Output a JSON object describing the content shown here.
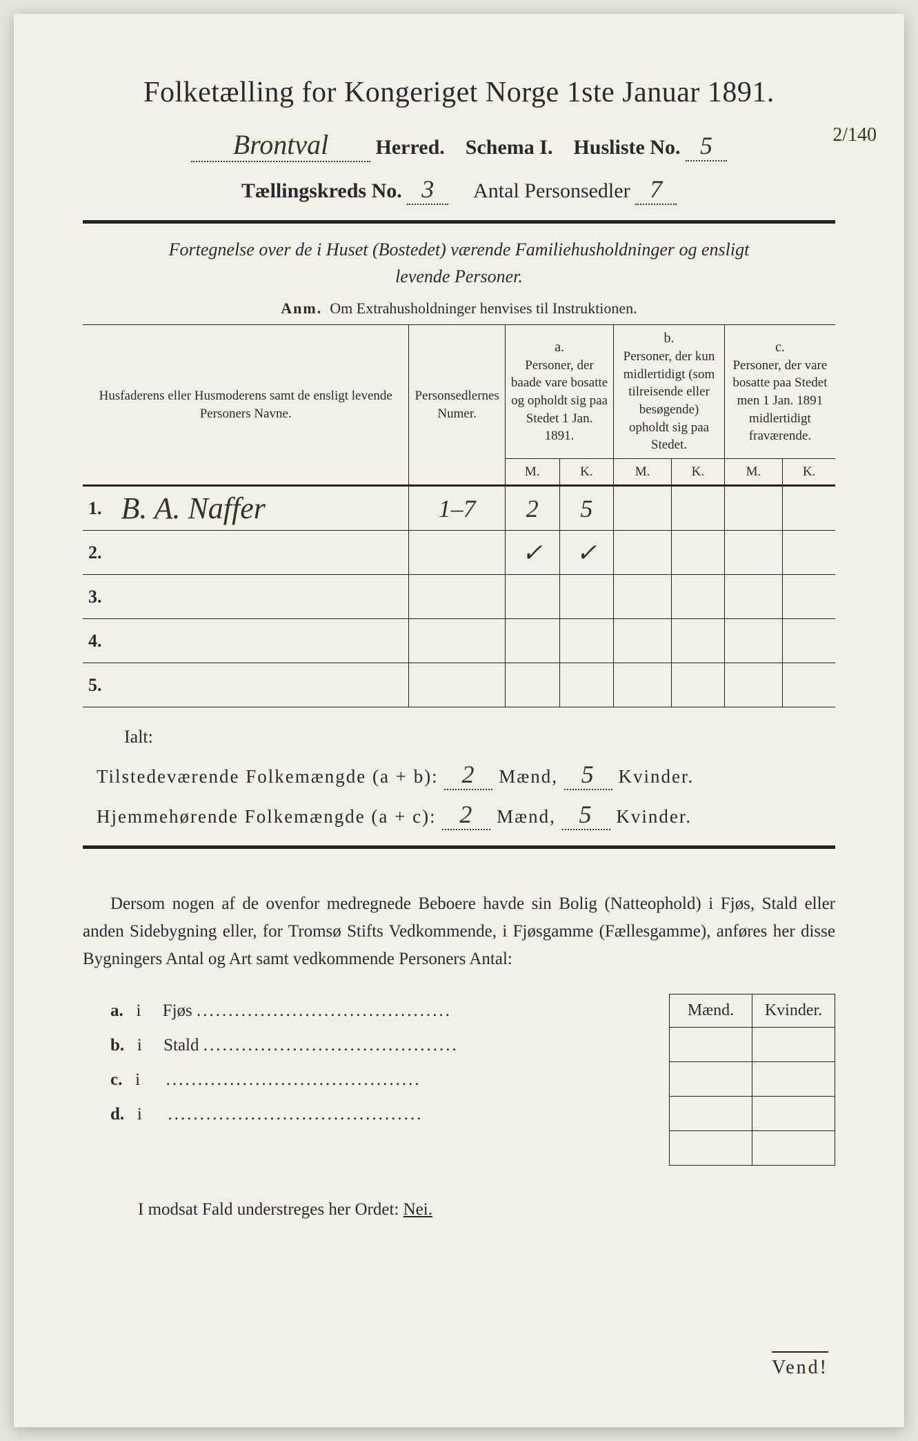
{
  "title": "Folketælling for Kongeriget Norge 1ste Januar 1891.",
  "header": {
    "herred_value": "Brontval",
    "herred_label": "Herred.",
    "schema_label": "Schema I.",
    "husliste_label": "Husliste No.",
    "husliste_value": "5",
    "kreds_label": "Tællingskreds No.",
    "kreds_value": "3",
    "antal_label": "Antal Personsedler",
    "antal_value": "7",
    "margin_note": "2/140"
  },
  "subtitle_line1": "Fortegnelse over de i Huset (Bostedet) værende Familiehusholdninger og ensligt",
  "subtitle_line2": "levende Personer.",
  "anm_label": "Anm.",
  "anm_text": "Om Extrahusholdninger henvises til Instruktionen.",
  "table": {
    "col_name": "Husfaderens eller Husmoderens samt de ensligt levende Personers Navne.",
    "col_numer": "Personsedlernes Numer.",
    "col_a_label": "a.",
    "col_a_text": "Personer, der baade vare bosatte og opholdt sig paa Stedet 1 Jan. 1891.",
    "col_b_label": "b.",
    "col_b_text": "Personer, der kun midlertidigt (som tilreisende eller besøgende) opholdt sig paa Stedet.",
    "col_c_label": "c.",
    "col_c_text": "Personer, der vare bosatte paa Stedet men 1 Jan. 1891 midlertidigt fraværende.",
    "m_label": "M.",
    "k_label": "K.",
    "rows": [
      {
        "num": "1.",
        "name": "B. A. Naffer",
        "numer": "1–7",
        "a_m": "2",
        "a_k": "5",
        "b_m": "",
        "b_k": "",
        "c_m": "",
        "c_k": ""
      },
      {
        "num": "2.",
        "name": "",
        "numer": "",
        "a_m": "✓",
        "a_k": "✓",
        "b_m": "",
        "b_k": "",
        "c_m": "",
        "c_k": ""
      },
      {
        "num": "3.",
        "name": "",
        "numer": "",
        "a_m": "",
        "a_k": "",
        "b_m": "",
        "b_k": "",
        "c_m": "",
        "c_k": ""
      },
      {
        "num": "4.",
        "name": "",
        "numer": "",
        "a_m": "",
        "a_k": "",
        "b_m": "",
        "b_k": "",
        "c_m": "",
        "c_k": ""
      },
      {
        "num": "5.",
        "name": "",
        "numer": "",
        "a_m": "",
        "a_k": "",
        "b_m": "",
        "b_k": "",
        "c_m": "",
        "c_k": ""
      }
    ]
  },
  "ialt_label": "Ialt:",
  "totals": {
    "line1_label": "Tilstedeværende Folkemængde (a + b):",
    "line1_m": "2",
    "line1_k": "5",
    "line2_label": "Hjemmehørende Folkemængde (a + c):",
    "line2_m": "2",
    "line2_k": "5",
    "maend": "Mænd,",
    "kvinder": "Kvinder."
  },
  "paragraph": "Dersom nogen af de ovenfor medregnede Beboere havde sin Bolig (Natteophold) i Fjøs, Stald eller anden Sidebygning eller, for Tromsø Stifts Vedkommende, i Fjøsgamme (Fællesgamme), anføres her disse Bygningers Antal og Art samt vedkommende Personers Antal:",
  "side": {
    "maend": "Mænd.",
    "kvinder": "Kvinder.",
    "items": [
      {
        "key": "a.",
        "i": "i",
        "label": "Fjøs"
      },
      {
        "key": "b.",
        "i": "i",
        "label": "Stald"
      },
      {
        "key": "c.",
        "i": "i",
        "label": ""
      },
      {
        "key": "d.",
        "i": "i",
        "label": ""
      }
    ]
  },
  "nei_line_prefix": "I modsat Fald understreges her Ordet:",
  "nei_word": "Nei.",
  "vend": "Vend!"
}
